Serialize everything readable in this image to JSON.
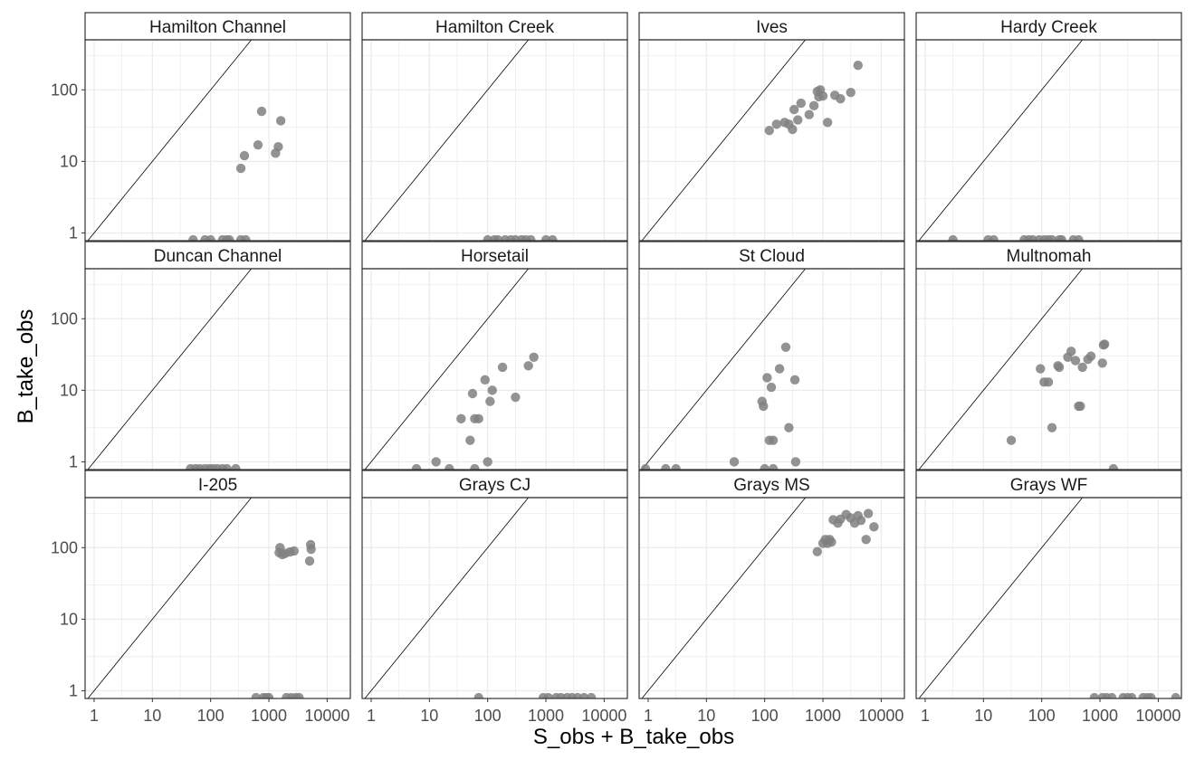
{
  "chart_data": {
    "type": "scatter",
    "layout": "facet-grid 3x4",
    "xlabel": "S_obs + B_take_obs",
    "ylabel": "B_take_obs",
    "x_scale": "log10",
    "y_scale": "log10",
    "xlim": [
      0.7,
      25000
    ],
    "ylim": [
      0.78,
      500
    ],
    "x_ticks": [
      1,
      10,
      100,
      1000,
      10000
    ],
    "x_tick_labels": [
      "1",
      "10",
      "100",
      "1000",
      "10000"
    ],
    "y_ticks": [
      1,
      10,
      100
    ],
    "y_tick_labels": [
      "1",
      "10",
      "100"
    ],
    "reference_line": "y = x",
    "grid": true,
    "point_color": "#808080",
    "facets": [
      {
        "name": "Hamilton Channel",
        "points": [
          [
            330,
            8
          ],
          [
            380,
            12
          ],
          [
            650,
            17
          ],
          [
            750,
            50
          ],
          [
            1300,
            13
          ],
          [
            1450,
            16
          ],
          [
            1600,
            37
          ],
          [
            50,
            0.8
          ],
          [
            80,
            0.8
          ],
          [
            100,
            0.8
          ],
          [
            160,
            0.8
          ],
          [
            190,
            0.8
          ],
          [
            210,
            0.8
          ],
          [
            330,
            0.8
          ],
          [
            400,
            0.8
          ]
        ]
      },
      {
        "name": "Hamilton Creek",
        "points": [
          [
            100,
            0.8
          ],
          [
            130,
            0.8
          ],
          [
            150,
            0.8
          ],
          [
            200,
            0.8
          ],
          [
            250,
            0.8
          ],
          [
            300,
            0.8
          ],
          [
            380,
            0.8
          ],
          [
            450,
            0.8
          ],
          [
            550,
            0.8
          ],
          [
            1000,
            0.8
          ],
          [
            1300,
            0.8
          ]
        ]
      },
      {
        "name": "Ives",
        "points": [
          [
            120,
            27
          ],
          [
            160,
            33
          ],
          [
            220,
            35
          ],
          [
            260,
            33
          ],
          [
            300,
            28
          ],
          [
            320,
            53
          ],
          [
            370,
            38
          ],
          [
            420,
            65
          ],
          [
            580,
            45
          ],
          [
            700,
            60
          ],
          [
            800,
            95
          ],
          [
            850,
            80
          ],
          [
            900,
            100
          ],
          [
            1000,
            82
          ],
          [
            1200,
            35
          ],
          [
            1600,
            84
          ],
          [
            2000,
            75
          ],
          [
            3000,
            92
          ],
          [
            4000,
            220
          ]
        ]
      },
      {
        "name": "Hardy Creek",
        "points": [
          [
            3,
            0.8
          ],
          [
            12,
            0.8
          ],
          [
            15,
            0.8
          ],
          [
            50,
            0.8
          ],
          [
            60,
            0.8
          ],
          [
            70,
            0.8
          ],
          [
            90,
            0.8
          ],
          [
            110,
            0.8
          ],
          [
            130,
            0.8
          ],
          [
            150,
            0.8
          ],
          [
            200,
            0.8
          ],
          [
            220,
            0.8
          ],
          [
            350,
            0.8
          ],
          [
            430,
            0.8
          ]
        ]
      },
      {
        "name": "Duncan Channel",
        "points": [
          [
            45,
            0.8
          ],
          [
            55,
            0.8
          ],
          [
            65,
            0.8
          ],
          [
            80,
            0.8
          ],
          [
            95,
            0.8
          ],
          [
            110,
            0.8
          ],
          [
            130,
            0.8
          ],
          [
            160,
            0.8
          ],
          [
            190,
            0.8
          ],
          [
            270,
            0.8
          ]
        ]
      },
      {
        "name": "Horsetail",
        "points": [
          [
            6,
            0.8
          ],
          [
            13,
            1
          ],
          [
            22,
            0.8
          ],
          [
            35,
            4
          ],
          [
            50,
            2
          ],
          [
            55,
            9
          ],
          [
            60,
            4
          ],
          [
            70,
            4
          ],
          [
            90,
            14
          ],
          [
            100,
            1
          ],
          [
            110,
            7
          ],
          [
            120,
            10
          ],
          [
            180,
            21
          ],
          [
            300,
            8
          ],
          [
            500,
            22
          ],
          [
            620,
            29
          ],
          [
            60,
            0.8
          ]
        ]
      },
      {
        "name": "St Cloud",
        "points": [
          [
            0.9,
            0.8
          ],
          [
            2,
            0.8
          ],
          [
            3,
            0.8
          ],
          [
            30,
            1
          ],
          [
            90,
            7
          ],
          [
            95,
            6
          ],
          [
            110,
            15
          ],
          [
            120,
            2
          ],
          [
            130,
            11
          ],
          [
            140,
            2
          ],
          [
            180,
            20
          ],
          [
            230,
            40
          ],
          [
            260,
            3
          ],
          [
            330,
            14
          ],
          [
            340,
            1
          ],
          [
            100,
            0.8
          ],
          [
            140,
            0.8
          ]
        ]
      },
      {
        "name": "Multnomah",
        "points": [
          [
            30,
            2
          ],
          [
            95,
            20
          ],
          [
            110,
            13
          ],
          [
            130,
            13
          ],
          [
            150,
            3
          ],
          [
            190,
            22
          ],
          [
            200,
            21
          ],
          [
            280,
            29
          ],
          [
            320,
            35
          ],
          [
            380,
            26
          ],
          [
            430,
            6
          ],
          [
            460,
            6
          ],
          [
            500,
            21
          ],
          [
            620,
            27
          ],
          [
            700,
            30
          ],
          [
            1100,
            24
          ],
          [
            1150,
            43
          ],
          [
            1200,
            44
          ],
          [
            1700,
            0.8
          ]
        ]
      },
      {
        "name": "I-205",
        "points": [
          [
            1500,
            85
          ],
          [
            1550,
            100
          ],
          [
            1700,
            80
          ],
          [
            1900,
            83
          ],
          [
            2300,
            87
          ],
          [
            2700,
            90
          ],
          [
            5000,
            65
          ],
          [
            5200,
            110
          ],
          [
            5300,
            95
          ],
          [
            600,
            0.8
          ],
          [
            800,
            0.8
          ],
          [
            900,
            0.8
          ],
          [
            1000,
            0.8
          ],
          [
            2000,
            0.8
          ],
          [
            2400,
            0.8
          ],
          [
            2900,
            0.8
          ],
          [
            3300,
            0.8
          ]
        ]
      },
      {
        "name": "Grays CJ",
        "points": [
          [
            70,
            0.8
          ],
          [
            900,
            0.8
          ],
          [
            1100,
            0.8
          ],
          [
            1500,
            0.8
          ],
          [
            1800,
            0.8
          ],
          [
            2300,
            0.8
          ],
          [
            2800,
            0.8
          ],
          [
            3500,
            0.8
          ],
          [
            4500,
            0.8
          ],
          [
            6000,
            0.8
          ]
        ]
      },
      {
        "name": "Grays MS",
        "points": [
          [
            800,
            88
          ],
          [
            1000,
            115
          ],
          [
            1100,
            130
          ],
          [
            1200,
            115
          ],
          [
            1300,
            130
          ],
          [
            1400,
            120
          ],
          [
            1500,
            245
          ],
          [
            1800,
            220
          ],
          [
            2000,
            250
          ],
          [
            2500,
            290
          ],
          [
            3000,
            260
          ],
          [
            3500,
            220
          ],
          [
            4000,
            280
          ],
          [
            4500,
            240
          ],
          [
            5500,
            130
          ],
          [
            6000,
            300
          ],
          [
            7500,
            195
          ]
        ]
      },
      {
        "name": "Grays WF",
        "points": [
          [
            800,
            0.8
          ],
          [
            1100,
            0.8
          ],
          [
            1300,
            0.8
          ],
          [
            1600,
            0.8
          ],
          [
            2500,
            0.8
          ],
          [
            3000,
            0.8
          ],
          [
            3500,
            0.8
          ],
          [
            5500,
            0.8
          ],
          [
            6500,
            0.8
          ],
          [
            7500,
            0.8
          ],
          [
            20000,
            0.8
          ]
        ]
      }
    ]
  }
}
